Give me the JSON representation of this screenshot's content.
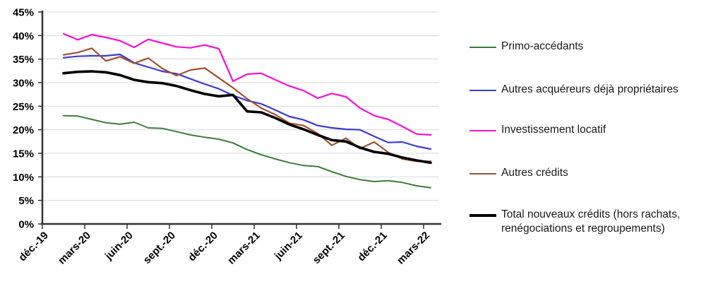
{
  "chart_data": {
    "type": "line",
    "title": "",
    "xlabel": "",
    "ylabel": "",
    "ylim": [
      0,
      45
    ],
    "grid": true,
    "legend_position": "right",
    "y_axis": {
      "tick_labels": [
        "0%",
        "5%",
        "10%",
        "15%",
        "20%",
        "25%",
        "30%",
        "35%",
        "40%",
        "45%"
      ],
      "tick_values": [
        0,
        5,
        10,
        15,
        20,
        25,
        30,
        35,
        40,
        45
      ]
    },
    "x_axis": {
      "tick_labels": [
        "déc.-19",
        "mars-20",
        "juin-20",
        "sept.-20",
        "déc.-20",
        "mars-21",
        "juin-21",
        "sept.-21",
        "déc.-21",
        "mars-22"
      ],
      "note": "monthly data, first plotted point is janv.-20"
    },
    "x_months": [
      "janv.-20",
      "févr.-20",
      "mars-20",
      "avr.-20",
      "mai-20",
      "juin-20",
      "juil.-20",
      "août-20",
      "sept.-20",
      "oct.-20",
      "nov.-20",
      "déc.-20",
      "janv.-21",
      "févr.-21",
      "mars-21",
      "avr.-21",
      "mai-21",
      "juin-21",
      "juil.-21",
      "août-21",
      "sept.-21",
      "oct.-21",
      "nov.-21",
      "déc.-21",
      "janv.-22",
      "févr.-22",
      "mars-22"
    ],
    "series": [
      {
        "id": "primo-accedants",
        "name": "Primo-accédants",
        "color": "#3a7d3b",
        "line_width": 2,
        "values": [
          23.0,
          22.9,
          22.2,
          21.5,
          21.2,
          21.6,
          20.4,
          20.3,
          19.6,
          18.9,
          18.4,
          18.0,
          17.2,
          15.8,
          14.7,
          13.8,
          13.0,
          12.4,
          12.2,
          11.1,
          10.1,
          9.4,
          9.0,
          9.2,
          8.8,
          8.1,
          7.7
        ]
      },
      {
        "id": "autres-acquereurs",
        "name": "Autres acquéreurs déjà propriétaires",
        "color": "#3a3ad9",
        "line_width": 2.2,
        "values": [
          35.3,
          35.6,
          35.7,
          35.7,
          36.0,
          34.2,
          33.3,
          32.4,
          31.9,
          30.8,
          29.7,
          28.7,
          27.3,
          26.2,
          25.5,
          24.2,
          22.8,
          22.1,
          20.9,
          20.4,
          20.1,
          20.0,
          18.6,
          17.3,
          17.4,
          16.5,
          15.9
        ]
      },
      {
        "id": "investissement-locatif",
        "name": "Investissement locatif",
        "color": "#fa10d0",
        "line_width": 2.2,
        "values": [
          40.4,
          39.1,
          40.2,
          39.6,
          38.9,
          37.5,
          39.2,
          38.4,
          37.6,
          37.4,
          38.0,
          37.2,
          30.3,
          31.8,
          32.0,
          30.6,
          29.3,
          28.3,
          26.7,
          27.7,
          27.0,
          24.6,
          23.0,
          22.2,
          20.7,
          19.1,
          18.9
        ]
      },
      {
        "id": "autres-credits",
        "name": "Autres crédits",
        "color": "#a0522d",
        "line_width": 2.2,
        "values": [
          35.9,
          36.4,
          37.3,
          34.6,
          35.5,
          34.1,
          35.2,
          33.0,
          31.5,
          32.7,
          33.1,
          31.0,
          28.9,
          26.6,
          24.6,
          23.2,
          21.4,
          20.9,
          19.2,
          16.7,
          18.2,
          16.0,
          17.4,
          15.2,
          13.8,
          13.3,
          13.3
        ]
      },
      {
        "id": "total-nouveaux-credits",
        "name": "Total nouveaux crédits (hors rachats, renégociations et regroupements)",
        "color": "#000000",
        "line_width": 3.6,
        "values": [
          32.0,
          32.3,
          32.4,
          32.2,
          31.6,
          30.6,
          30.1,
          29.9,
          29.3,
          28.4,
          27.6,
          27.1,
          27.4,
          23.9,
          23.7,
          22.5,
          21.1,
          20.1,
          18.9,
          17.8,
          17.5,
          16.2,
          15.3,
          14.9,
          14.1,
          13.5,
          13.0
        ]
      }
    ],
    "style": {
      "grid_color": "#d9d9d9",
      "axis_color": "#333333",
      "tick_label_color": "#000000"
    }
  },
  "legend_top_offsets": [
    56,
    117,
    174,
    235,
    294
  ]
}
